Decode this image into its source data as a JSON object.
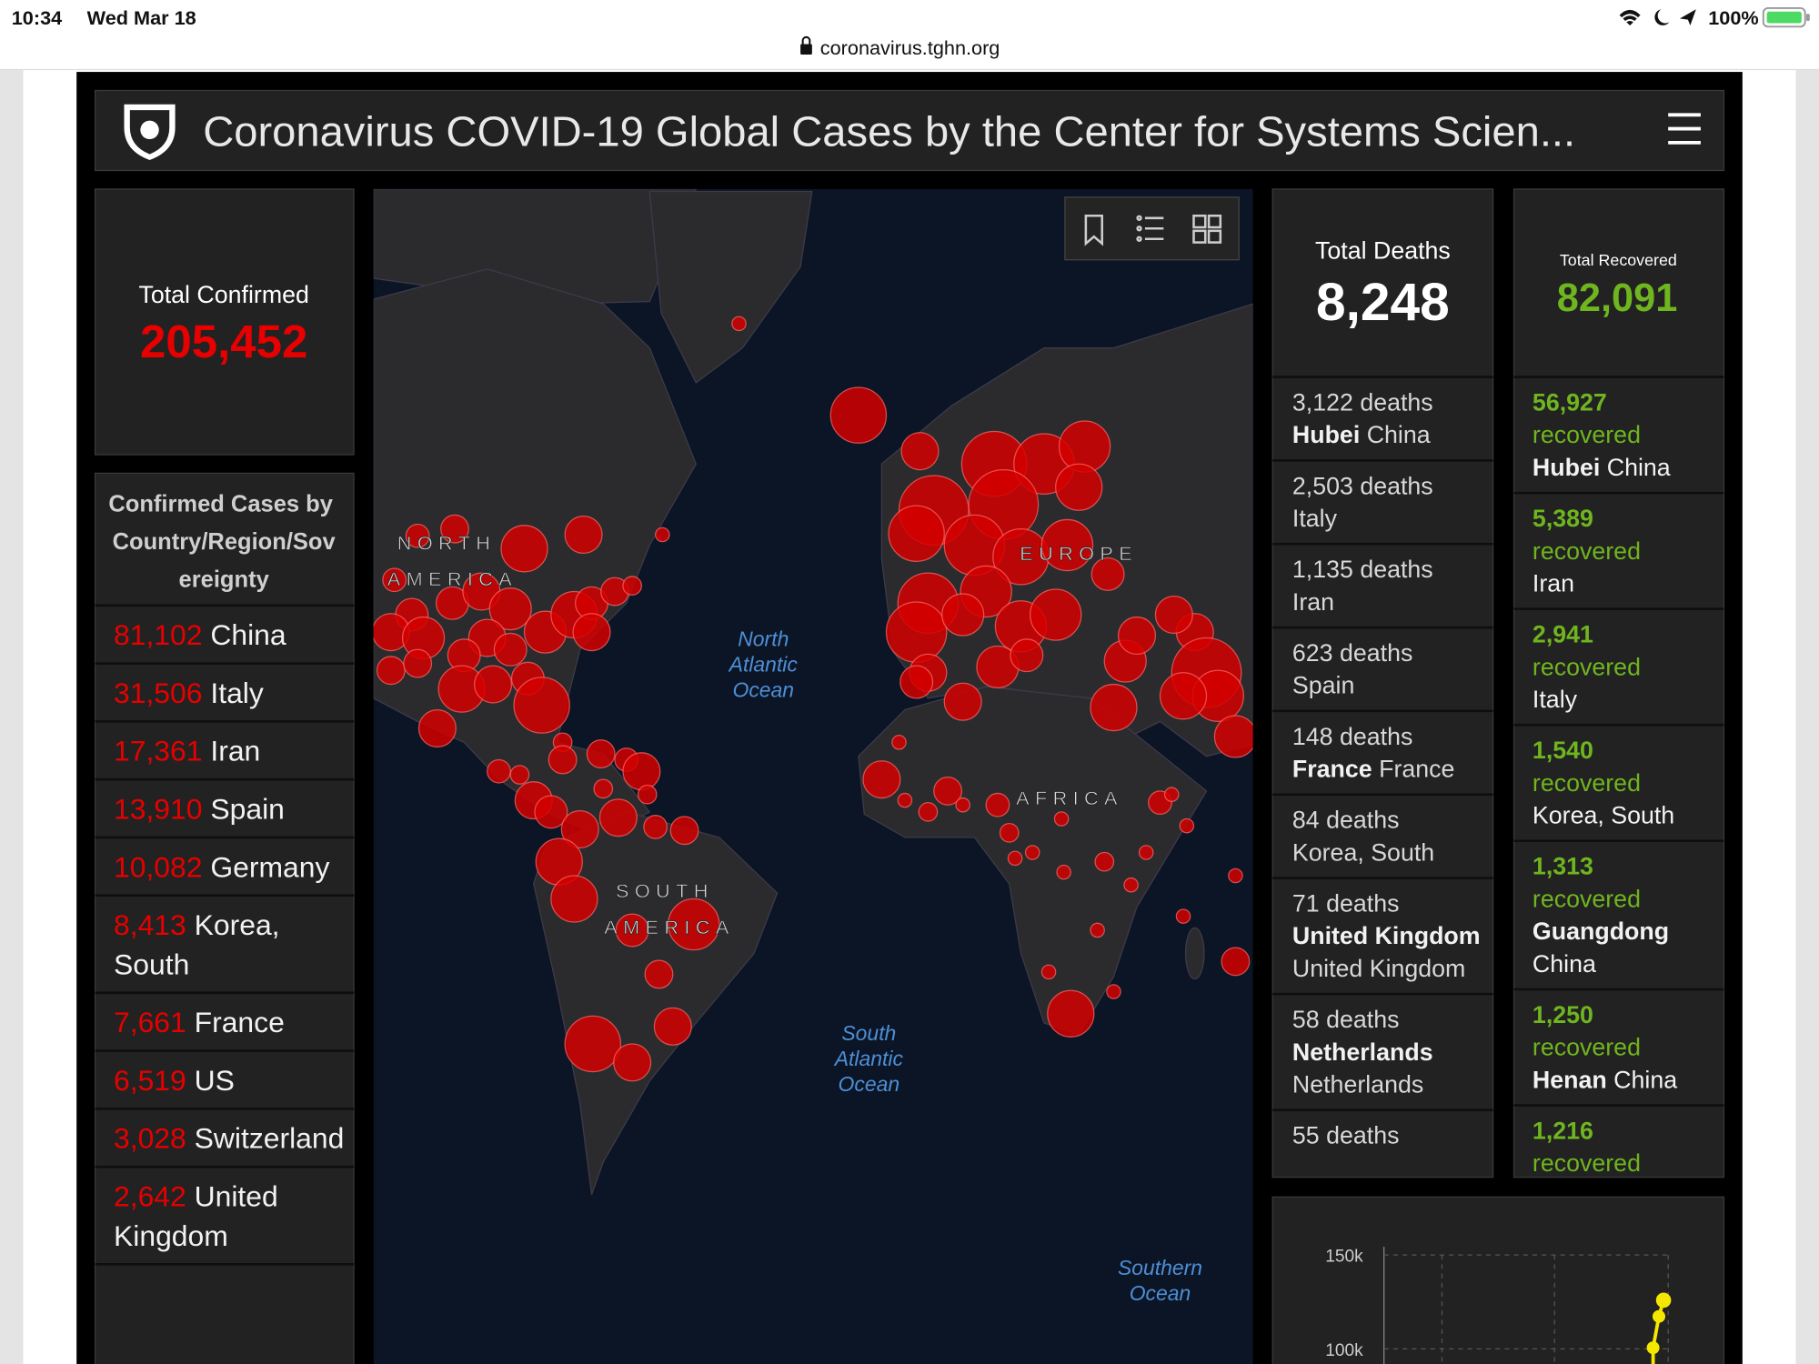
{
  "status_bar": {
    "time": "10:34",
    "date": "Wed Mar 18",
    "battery": "100%"
  },
  "browser": {
    "url": "coronavirus.tghn.org"
  },
  "header": {
    "title": "Coronavirus COVID-19 Global Cases by the Center for Systems Scien..."
  },
  "total_confirmed": {
    "label": "Total Confirmed",
    "value": "205,452"
  },
  "confirmed_list": {
    "title": "Confirmed Cases by Country/Region/Sovereignty",
    "rows": [
      {
        "count": "81,102",
        "place": "China"
      },
      {
        "count": "31,506",
        "place": "Italy"
      },
      {
        "count": "17,361",
        "place": "Iran"
      },
      {
        "count": "13,910",
        "place": "Spain"
      },
      {
        "count": "10,082",
        "place": "Germany"
      },
      {
        "count": "8,413",
        "place": "Korea, South"
      },
      {
        "count": "7,661",
        "place": "France"
      },
      {
        "count": "6,519",
        "place": "US"
      },
      {
        "count": "3,028",
        "place": "Switzerland"
      },
      {
        "count": "2,642",
        "place": "United Kingdom"
      }
    ]
  },
  "map": {
    "region_labels": [
      "NORTH",
      "AMERICA",
      "EUROPE",
      "AFRICA",
      "SOUTH",
      "AMERICA"
    ],
    "ocean_labels": [
      [
        "North",
        "Atlantic",
        "Ocean"
      ],
      [
        "South",
        "Atlantic",
        "Ocean"
      ],
      [
        "Southern",
        "Ocean"
      ]
    ]
  },
  "total_deaths": {
    "label": "Total Deaths",
    "value": "8,248",
    "rows": [
      {
        "count": "3,122 deaths",
        "region": "Hubei",
        "country": "China"
      },
      {
        "count": "2,503 deaths",
        "country": "Italy"
      },
      {
        "count": "1,135 deaths",
        "country": "Iran"
      },
      {
        "count": "623 deaths",
        "country": "Spain"
      },
      {
        "count": "148 deaths",
        "region": "France",
        "country": "France"
      },
      {
        "count": "84 deaths",
        "country": "Korea, South"
      },
      {
        "count": "71 deaths",
        "region": "United Kingdom",
        "country": "United Kingdom"
      },
      {
        "count": "58 deaths",
        "region": "Netherlands",
        "country": "Netherlands"
      },
      {
        "count": "55 deaths"
      }
    ]
  },
  "total_recovered": {
    "label": "Total Recovered",
    "value": "82,091",
    "rows": [
      {
        "count": "56,927",
        "label": "recovered",
        "region": "Hubei",
        "country": "China"
      },
      {
        "count": "5,389",
        "label": "recovered",
        "country": "Iran"
      },
      {
        "count": "2,941",
        "label": "recovered",
        "country": "Italy"
      },
      {
        "count": "1,540",
        "label": "recovered",
        "country": "Korea, South"
      },
      {
        "count": "1,313",
        "label": "recovered",
        "region": "Guangdong",
        "country": "China"
      },
      {
        "count": "1,250",
        "label": "recovered",
        "region": "Henan",
        "country": "China"
      },
      {
        "count": "1,216",
        "label": "recovered"
      }
    ]
  },
  "trend_chart": {
    "yticks": [
      "150k",
      "100k"
    ]
  }
}
